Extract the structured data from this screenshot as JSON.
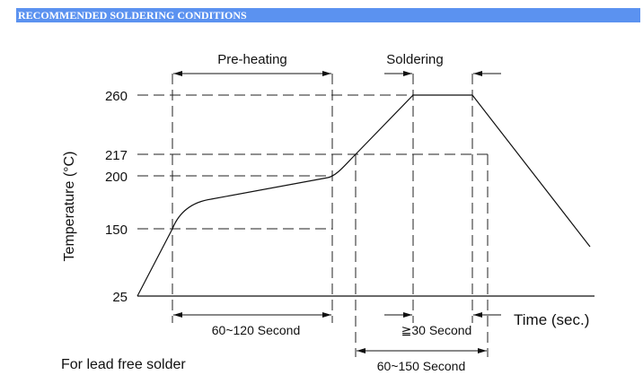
{
  "header": {
    "title": "RECOMMENDED SOLDERING CONDITIONS"
  },
  "chart_data": {
    "type": "line",
    "ylabel": "Temperature (°C)",
    "xlabel": "Time (sec.)",
    "y_ticks": [
      "260",
      "217",
      "200",
      "150",
      "25"
    ],
    "profile": [
      {
        "x": 0,
        "y": 25
      },
      {
        "x": 40,
        "y": 150
      },
      {
        "x": 50,
        "y": 170
      },
      {
        "x": 60,
        "y": 176
      },
      {
        "x": 170,
        "y": 198
      },
      {
        "x": 180,
        "y": 205
      },
      {
        "x": 195,
        "y": 217
      },
      {
        "x": 235,
        "y": 260
      },
      {
        "x": 295,
        "y": 260
      },
      {
        "x": 400,
        "y": 110
      }
    ],
    "zones": {
      "preheating": "Pre-heating",
      "soldering": "Soldering",
      "preheat_time": "60~120 Second",
      "peak_time": "≧30 Second",
      "above_liquidus_time": "60~150 Second"
    },
    "note": "For lead free solder"
  }
}
